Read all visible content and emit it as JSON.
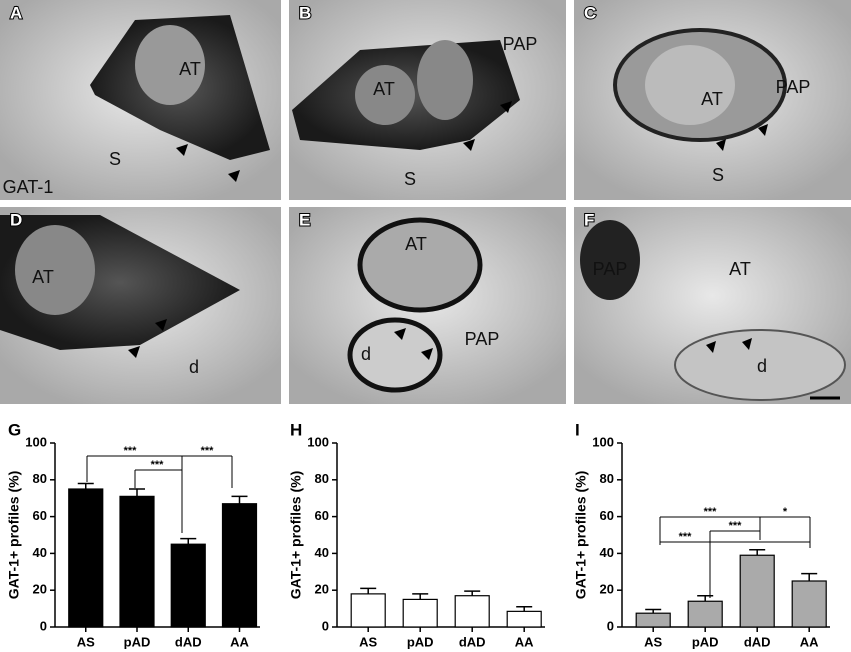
{
  "micrographs": [
    {
      "letter": "A",
      "labels": [
        "AT",
        "S",
        "GAT-1"
      ]
    },
    {
      "letter": "B",
      "labels": [
        "PAP",
        "AT",
        "S"
      ]
    },
    {
      "letter": "C",
      "labels": [
        "AT",
        "PAP",
        "S"
      ]
    },
    {
      "letter": "D",
      "labels": [
        "AT",
        "d"
      ]
    },
    {
      "letter": "E",
      "labels": [
        "AT",
        "d",
        "PAP"
      ]
    },
    {
      "letter": "F",
      "labels": [
        "PAP",
        "AT",
        "d"
      ]
    }
  ],
  "chart_data": [
    {
      "type": "bar",
      "panel": "G",
      "ylabel": "GAT-1+ profiles (%)",
      "categories": [
        "AS",
        "pAD",
        "dAD",
        "AA"
      ],
      "values": [
        75,
        71,
        45,
        67
      ],
      "errors": [
        3,
        4,
        3,
        4
      ],
      "color": "#000000",
      "ylim": [
        0,
        100
      ],
      "yticks": [
        0,
        20,
        40,
        60,
        80,
        100
      ],
      "annotations": [
        "***",
        "***",
        "***"
      ]
    },
    {
      "type": "bar",
      "panel": "H",
      "ylabel": "GAT-1+ profiles (%)",
      "categories": [
        "AS",
        "pAD",
        "dAD",
        "AA"
      ],
      "values": [
        18,
        15,
        17,
        8.5
      ],
      "errors": [
        3,
        3,
        2.5,
        2.5
      ],
      "color": "#ffffff",
      "ylim": [
        0,
        100
      ],
      "yticks": [
        0,
        20,
        40,
        60,
        80,
        100
      ],
      "annotations": []
    },
    {
      "type": "bar",
      "panel": "I",
      "ylabel": "GAT-1+ profiles (%)",
      "categories": [
        "AS",
        "pAD",
        "dAD",
        "AA"
      ],
      "values": [
        7.5,
        14,
        39,
        25
      ],
      "errors": [
        2,
        3,
        3,
        4
      ],
      "color": "#aaaaaa",
      "ylim": [
        0,
        100
      ],
      "yticks": [
        0,
        20,
        40,
        60,
        80,
        100
      ],
      "annotations": [
        "***",
        "***",
        "***",
        "*"
      ]
    }
  ]
}
